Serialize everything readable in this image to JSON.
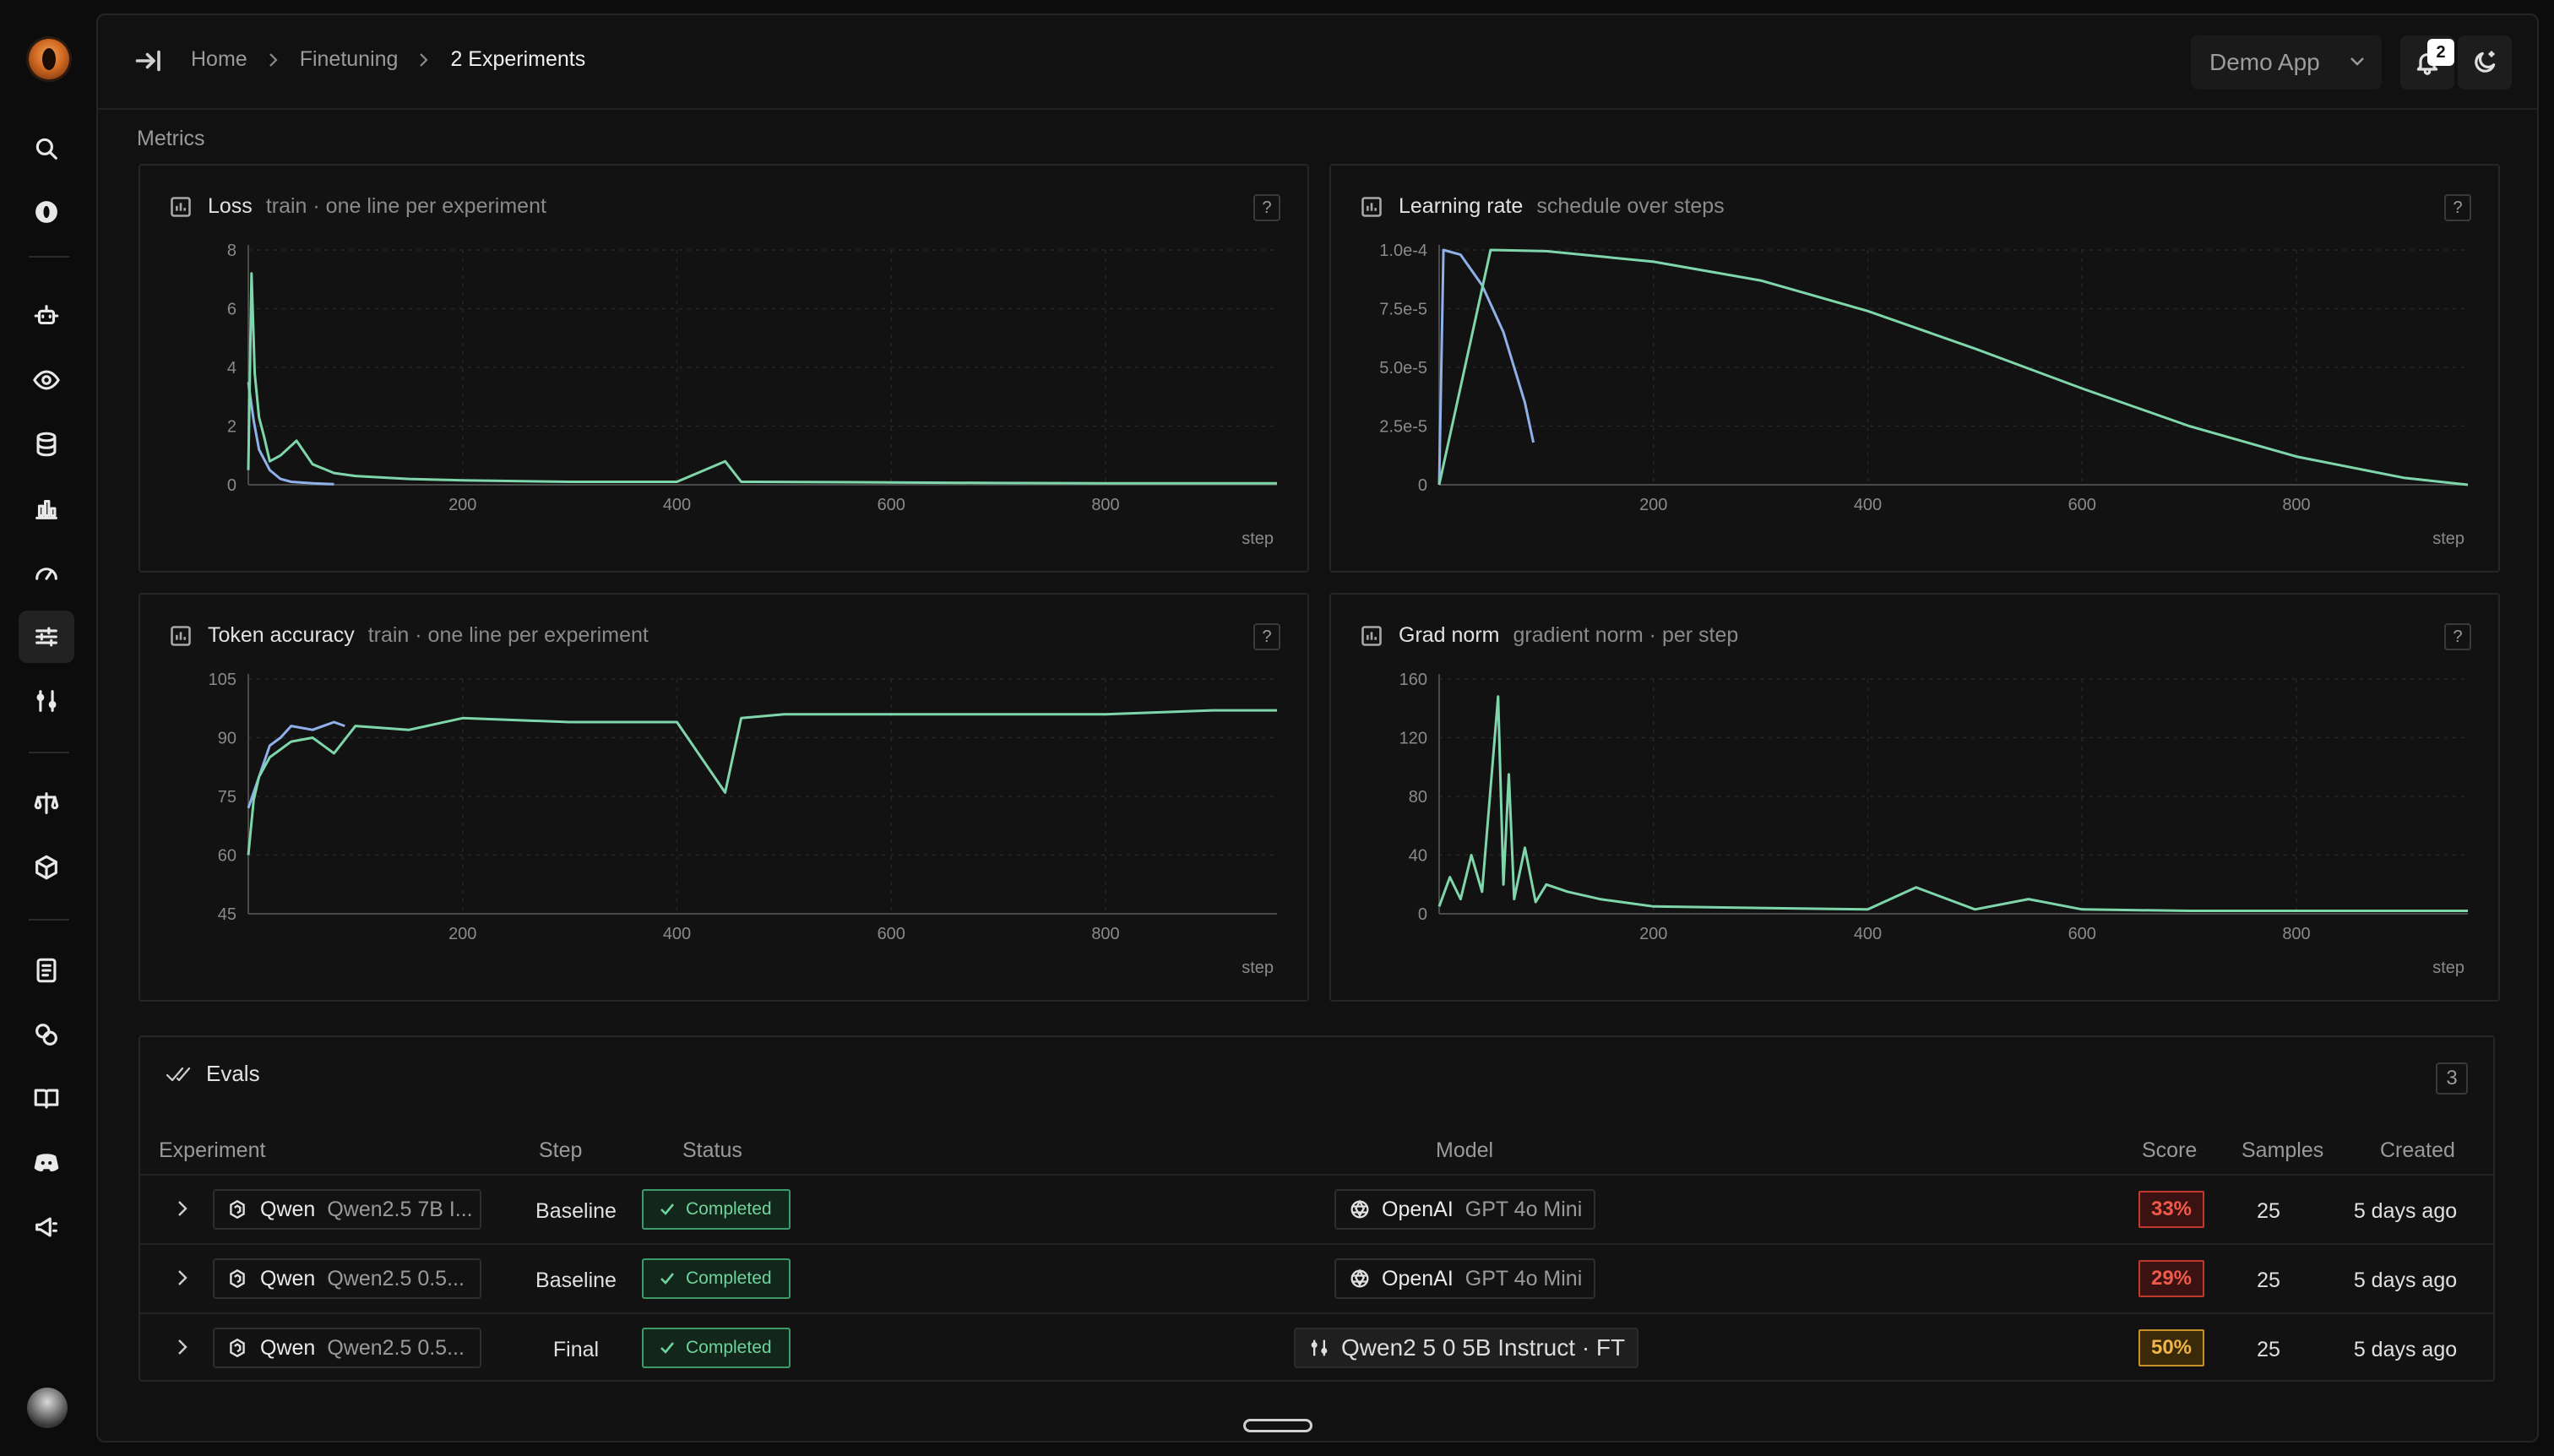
{
  "breadcrumb": {
    "home": "Home",
    "section": "Finetuning",
    "current": "2 Experiments"
  },
  "header": {
    "app_select": "Demo App",
    "notification_count": "2"
  },
  "metrics_label": "Metrics",
  "charts": [
    {
      "title": "Loss",
      "subtitle": "train · one line per experiment"
    },
    {
      "title": "Learning rate",
      "subtitle": "schedule over steps"
    },
    {
      "title": "Token accuracy",
      "subtitle": "train · one line per experiment"
    },
    {
      "title": "Grad norm",
      "subtitle": "gradient norm · per step"
    }
  ],
  "colors": {
    "series_green": "#7fd6ab",
    "series_blue": "#8fb0e8"
  },
  "chart_data": [
    {
      "type": "line",
      "title": "Loss",
      "xlabel": "step",
      "ylabel": "",
      "xlim": [
        0,
        960
      ],
      "ylim": [
        0,
        8
      ],
      "x_ticks": [
        "200",
        "400",
        "600",
        "800"
      ],
      "y_ticks": [
        "0",
        "2",
        "4",
        "6",
        "8"
      ],
      "series": [
        {
          "x": [
            0,
            5,
            10,
            20,
            30,
            40,
            60,
            80
          ],
          "y": [
            3.5,
            2.2,
            1.2,
            0.5,
            0.2,
            0.1,
            0.05,
            0.02
          ]
        },
        {
          "x": [
            0,
            3,
            6,
            10,
            15,
            20,
            30,
            45,
            60,
            80,
            100,
            150,
            200,
            300,
            400,
            445,
            460,
            600,
            700,
            800,
            900,
            960
          ],
          "y": [
            0.5,
            7.2,
            3.8,
            2.3,
            1.6,
            0.8,
            1.0,
            1.5,
            0.7,
            0.4,
            0.3,
            0.2,
            0.15,
            0.1,
            0.1,
            0.8,
            0.1,
            0.08,
            0.06,
            0.05,
            0.05,
            0.05
          ]
        }
      ]
    },
    {
      "type": "line",
      "title": "Learning rate",
      "xlabel": "step",
      "ylabel": "",
      "xlim": [
        0,
        960
      ],
      "ylim": [
        0,
        0.0001
      ],
      "x_ticks": [
        "200",
        "400",
        "600",
        "800"
      ],
      "y_ticks": [
        "0",
        "2.5e-5",
        "5.0e-5",
        "7.5e-5",
        "1.0e-4"
      ],
      "series": [
        {
          "x": [
            0,
            4,
            20,
            40,
            60,
            80,
            88
          ],
          "y": [
            0,
            0.0001,
            9.8e-05,
            8.5e-05,
            6.5e-05,
            3.5e-05,
            1.8e-05
          ]
        },
        {
          "x": [
            0,
            48,
            100,
            200,
            300,
            400,
            500,
            600,
            700,
            800,
            900,
            960
          ],
          "y": [
            0,
            0.0001,
            9.95e-05,
            9.5e-05,
            8.7e-05,
            7.4e-05,
            5.8e-05,
            4.1e-05,
            2.5e-05,
            1.2e-05,
            3e-06,
            0
          ]
        }
      ]
    },
    {
      "type": "line",
      "title": "Token accuracy",
      "xlabel": "step",
      "ylabel": "",
      "xlim": [
        0,
        960
      ],
      "ylim": [
        45,
        105
      ],
      "x_ticks": [
        "200",
        "400",
        "600",
        "800"
      ],
      "y_ticks": [
        "45",
        "60",
        "75",
        "90",
        "105"
      ],
      "series": [
        {
          "x": [
            0,
            10,
            20,
            30,
            40,
            60,
            80,
            90
          ],
          "y": [
            72,
            80,
            88,
            90,
            93,
            92,
            94,
            93
          ]
        },
        {
          "x": [
            0,
            5,
            10,
            20,
            40,
            60,
            80,
            100,
            150,
            200,
            300,
            400,
            445,
            460,
            500,
            600,
            700,
            800,
            900,
            960
          ],
          "y": [
            60,
            74,
            80,
            85,
            89,
            90,
            86,
            93,
            92,
            95,
            94,
            94,
            76,
            95,
            96,
            96,
            96,
            96,
            97,
            97
          ]
        }
      ]
    },
    {
      "type": "line",
      "title": "Grad norm",
      "xlabel": "step",
      "ylabel": "",
      "xlim": [
        0,
        960
      ],
      "ylim": [
        0,
        160
      ],
      "x_ticks": [
        "200",
        "400",
        "600",
        "800"
      ],
      "y_ticks": [
        "0",
        "40",
        "80",
        "120",
        "160"
      ],
      "series": [
        {
          "x": [
            0,
            10,
            20,
            30,
            40,
            55,
            60,
            65,
            70,
            80,
            90,
            100,
            120,
            150,
            200,
            300,
            400,
            445,
            500,
            550,
            600,
            700,
            800,
            900,
            960
          ],
          "y": [
            5,
            25,
            10,
            40,
            15,
            148,
            20,
            95,
            10,
            45,
            8,
            20,
            15,
            10,
            5,
            4,
            3,
            18,
            3,
            10,
            3,
            2,
            2,
            2,
            2
          ]
        }
      ]
    }
  ],
  "evals": {
    "title": "Evals",
    "count": "3",
    "columns": {
      "experiment": "Experiment",
      "step": "Step",
      "status": "Status",
      "model": "Model",
      "score": "Score",
      "samples": "Samples",
      "created": "Created"
    },
    "rows": [
      {
        "exp_provider": "Qwen",
        "exp_model": "Qwen2.5 7B I...",
        "step": "Baseline",
        "status": "Completed",
        "model_provider": "OpenAI",
        "model_name": "GPT 4o Mini",
        "score": "33%",
        "samples": "25",
        "created": "5 days ago"
      },
      {
        "exp_provider": "Qwen",
        "exp_model": "Qwen2.5 0.5...",
        "step": "Baseline",
        "status": "Completed",
        "model_provider": "OpenAI",
        "model_name": "GPT 4o Mini",
        "score": "29%",
        "samples": "25",
        "created": "5 days ago"
      },
      {
        "exp_provider": "Qwen",
        "exp_model": "Qwen2.5 0.5...",
        "step": "Final",
        "status": "Completed",
        "model_ft": "Qwen2 5 0 5B Instruct · FT",
        "score": "50%",
        "samples": "25",
        "created": "5 days ago"
      }
    ]
  }
}
